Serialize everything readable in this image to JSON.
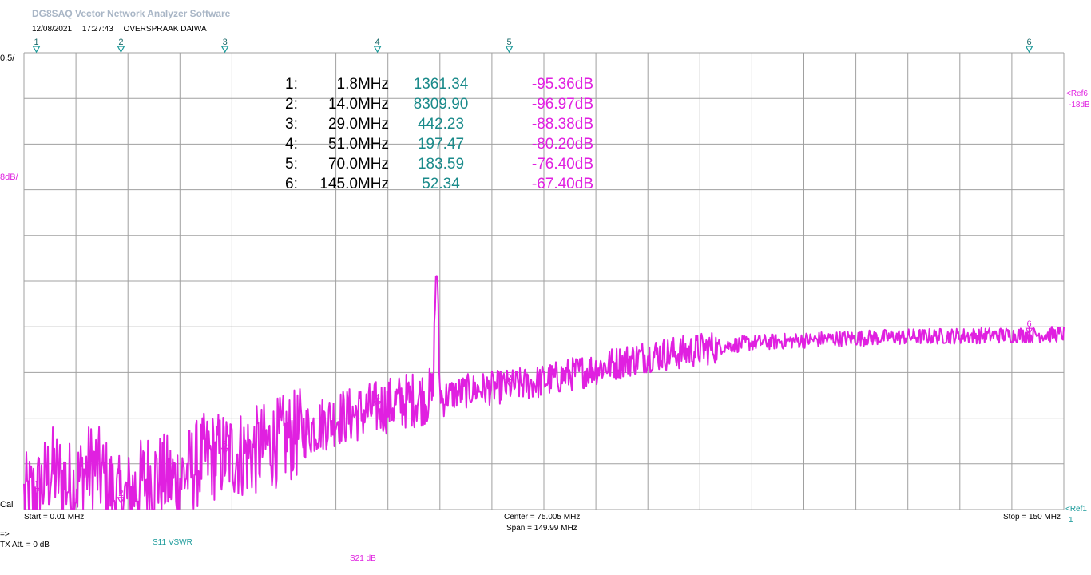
{
  "app": {
    "title": "DG8SAQ Vector Network Analyzer Software",
    "date": "12/08/2021",
    "time": "17:27:43",
    "description": "OVERSPRAAK DAIWA"
  },
  "left_scale": {
    "top_label": "0.5/",
    "div_label": "8dB/",
    "cal_label": "Cal"
  },
  "right_scale": {
    "ref6_label": "<Ref6",
    "ref6_value": "-18dB",
    "ref1_label": "<Ref1",
    "ref1_value": "1"
  },
  "footer": {
    "start": "Start = 0.01 MHz",
    "center": "Center = 75.005 MHz",
    "span": "Span = 149.99 MHz",
    "stop": "Stop = 150 MHz",
    "arrow": "=>",
    "tx_att": "TX Att.  = 0 dB",
    "trace1": "S11  VSWR",
    "trace2": "S21  dB"
  },
  "colors": {
    "trace": "#e020e0",
    "marker_top": "#1a9a9a",
    "grid": "#a0a0a0",
    "value1": "#1a8a8a"
  },
  "markers": [
    {
      "index": "1:",
      "freq": "1.8MHz",
      "vswr": "1361.34",
      "db": "-95.36dB"
    },
    {
      "index": "2:",
      "freq": "14.0MHz",
      "vswr": "8309.90",
      "db": "-96.97dB"
    },
    {
      "index": "3:",
      "freq": "29.0MHz",
      "vswr": "442.23",
      "db": "-88.38dB"
    },
    {
      "index": "4:",
      "freq": "51.0MHz",
      "vswr": "197.47",
      "db": "-80.20dB"
    },
    {
      "index": "5:",
      "freq": "70.0MHz",
      "vswr": "183.59",
      "db": "-76.40dB"
    },
    {
      "index": "6:",
      "freq": "145.0MHz",
      "vswr": "52.34",
      "db": "-67.40dB"
    }
  ],
  "chart_data": {
    "type": "line",
    "x_unit": "MHz",
    "xlim": [
      0.01,
      150
    ],
    "ylim": [
      -98,
      -18
    ],
    "y_divisions": 10,
    "x_divisions": 20,
    "grid": true,
    "marker_freqs": [
      1.8,
      14.0,
      29.0,
      51.0,
      70.0,
      145.0
    ],
    "marker_labels": [
      "1",
      "2",
      "3",
      "4",
      "5",
      "6"
    ],
    "series": [
      {
        "unit": "dB",
        "x": [
          0,
          1.8,
          4,
          7,
          10,
          14,
          18,
          22,
          26,
          29,
          33,
          37,
          41,
          45,
          49,
          51,
          55,
          59,
          59.5,
          60,
          60.5,
          61,
          65,
          70,
          75,
          80,
          85,
          90,
          95,
          100,
          105,
          110,
          115,
          120,
          125,
          130,
          135,
          140,
          145,
          150
        ],
        "y": [
          -96,
          -95.4,
          -91,
          -94,
          -90,
          -97.0,
          -92,
          -93,
          -89,
          -88.4,
          -88,
          -86,
          -84,
          -82,
          -81,
          -80.2,
          -79,
          -78,
          -53,
          -77,
          -79,
          -78,
          -77,
          -76.4,
          -75.5,
          -74,
          -72.5,
          -71,
          -70.5,
          -69.5,
          -68.8,
          -68.5,
          -68.2,
          -68.0,
          -67.8,
          -67.7,
          -67.6,
          -67.5,
          -67.4,
          -67.3
        ]
      }
    ]
  }
}
